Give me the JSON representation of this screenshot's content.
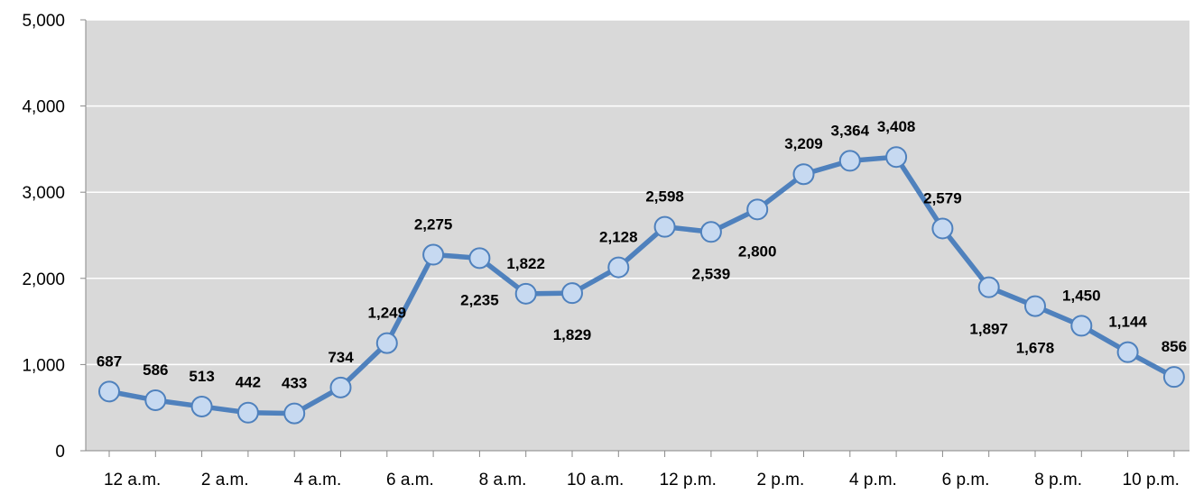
{
  "chart_data": {
    "type": "line",
    "title": "",
    "xlabel": "",
    "ylabel": "",
    "x": [
      "12 a.m.",
      "1 a.m.",
      "2 a.m.",
      "3 a.m.",
      "4 a.m.",
      "5 a.m.",
      "6 a.m.",
      "7 a.m.",
      "8 a.m.",
      "9 a.m.",
      "10 a.m.",
      "11 a.m.",
      "12 p.m.",
      "1 p.m.",
      "2 p.m.",
      "3 p.m.",
      "4 p.m.",
      "5 p.m.",
      "6 p.m.",
      "7 p.m.",
      "8 p.m.",
      "9 p.m.",
      "10 p.m.",
      "11 p.m."
    ],
    "x_tick_labels": [
      "12 a.m.",
      "2 a.m.",
      "4 a.m.",
      "6 a.m.",
      "8 a.m.",
      "10 a.m.",
      "12 p.m.",
      "2 p.m.",
      "4 p.m.",
      "6 p.m.",
      "8 p.m.",
      "10 p.m."
    ],
    "series": [
      {
        "values": [
          687,
          586,
          513,
          442,
          433,
          734,
          1249,
          2275,
          2235,
          1822,
          1829,
          2128,
          2598,
          2539,
          2800,
          3209,
          3364,
          3408,
          2579,
          1897,
          1678,
          1450,
          1144,
          856
        ],
        "labels": [
          "687",
          "586",
          "513",
          "442",
          "433",
          "734",
          "1,249",
          "2,275",
          "2,235",
          "1,822",
          "1,829",
          "2,128",
          "2,598",
          "2,539",
          "2,800",
          "3,209",
          "3,364",
          "3,408",
          "2,579",
          "1,897",
          "1,678",
          "1,450",
          "1,144",
          "856"
        ],
        "label_position": [
          "above",
          "above",
          "above",
          "above",
          "above",
          "above",
          "above",
          "above",
          "below",
          "above",
          "below",
          "above",
          "above",
          "below",
          "below",
          "above",
          "above",
          "above",
          "above",
          "below",
          "below",
          "above",
          "above",
          "above"
        ]
      }
    ],
    "ylim": [
      0,
      5000
    ],
    "y_ticks": [
      0,
      1000,
      2000,
      3000,
      4000,
      5000
    ],
    "y_tick_labels": [
      "0",
      "1,000",
      "2,000",
      "3,000",
      "4,000",
      "5,000"
    ],
    "grid": true,
    "legend": "none",
    "colors": {
      "plot_background": "#d9d9d9",
      "gridline": "#ffffff",
      "line": "#4f81bd",
      "marker_fill": "#c6d9f1",
      "marker_stroke": "#4f81bd",
      "axis": "#888888"
    }
  }
}
